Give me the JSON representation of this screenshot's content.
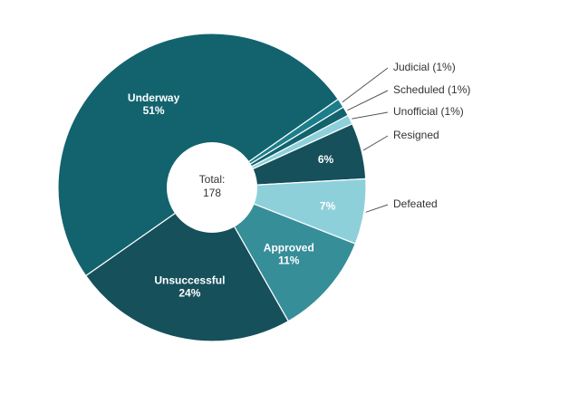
{
  "chart_data": {
    "type": "pie",
    "donut": true,
    "center_label": "Total:",
    "center_value": "178",
    "slices": [
      {
        "name": "Underway",
        "value": 51,
        "label": "Underway",
        "pct_label": "51%",
        "color": "#12636e",
        "label_mode": "inside"
      },
      {
        "name": "Judicial",
        "value": 1,
        "label": "Judicial (1%)",
        "color": "#1b7e8a",
        "label_mode": "outside"
      },
      {
        "name": "Scheduled",
        "value": 1,
        "label": "Scheduled (1%)",
        "color": "#12636e",
        "label_mode": "outside"
      },
      {
        "name": "Unofficial",
        "value": 1,
        "label": "Unofficial (1%)",
        "color": "#8ed0da",
        "label_mode": "outside"
      },
      {
        "name": "Resigned",
        "value": 6,
        "label": "Resigned",
        "pct_label": "6%",
        "color": "#15505b",
        "label_mode": "split"
      },
      {
        "name": "Defeated",
        "value": 7,
        "label": "Defeated",
        "pct_label": "7%",
        "color": "#8ed0da",
        "label_mode": "split"
      },
      {
        "name": "Approved",
        "value": 11,
        "label": "Approved",
        "pct_label": "11%",
        "color": "#368e99",
        "label_mode": "inside"
      },
      {
        "name": "Unsuccessful",
        "value": 24,
        "label": "Unsuccessful",
        "pct_label": "24%",
        "color": "#15505b",
        "label_mode": "inside"
      }
    ]
  }
}
